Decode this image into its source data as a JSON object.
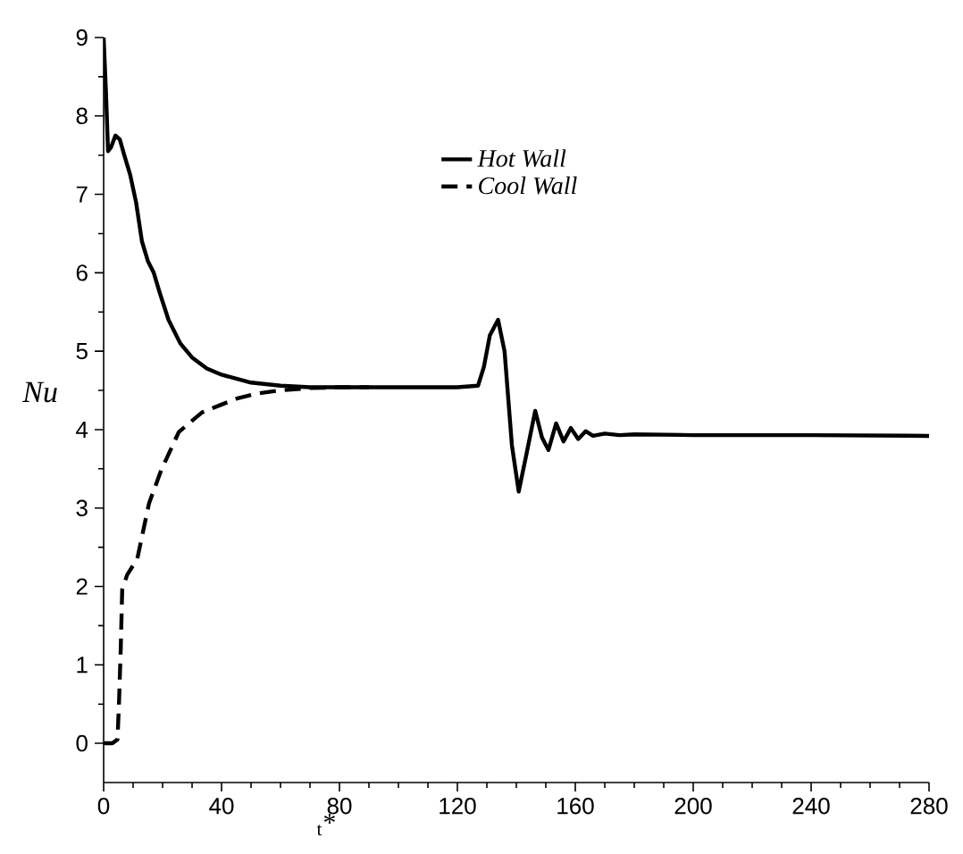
{
  "chart_data": {
    "type": "line",
    "xlabel": "$_{t}$*",
    "ylabel": "*Nu*",
    "xlim": [
      0,
      280
    ],
    "ylim": [
      -0.5,
      9
    ],
    "xticks": [
      0,
      40,
      80,
      120,
      160,
      200,
      240,
      280
    ],
    "yticks": [
      0,
      1,
      2,
      3,
      4,
      5,
      6,
      7,
      8,
      9
    ],
    "legend": "top",
    "series": [
      {
        "name": "*Hot Wall*",
        "color": "#000000",
        "line_style": "solid",
        "x": [
          0,
          0.8,
          1.5,
          2.5,
          4,
          5.5,
          7,
          9,
          11,
          13,
          15,
          17,
          19,
          22,
          26,
          30,
          35,
          40,
          50,
          60,
          70,
          80,
          100,
          120,
          127,
          129,
          131,
          133.8,
          136,
          138.5,
          140.8,
          143.5,
          146.4,
          148.7,
          150.9,
          153.5,
          156,
          158.5,
          161,
          163.5,
          166,
          170,
          175,
          180,
          200,
          240,
          280
        ],
        "values": [
          9,
          8.3,
          7.55,
          7.6,
          7.75,
          7.7,
          7.5,
          7.25,
          6.9,
          6.4,
          6.15,
          6.0,
          5.75,
          5.4,
          5.1,
          4.92,
          4.78,
          4.7,
          4.6,
          4.56,
          4.54,
          4.54,
          4.54,
          4.54,
          4.56,
          4.8,
          5.2,
          5.4,
          5.0,
          3.8,
          3.21,
          3.7,
          4.24,
          3.9,
          3.74,
          4.08,
          3.85,
          4.02,
          3.88,
          3.98,
          3.92,
          3.95,
          3.93,
          3.94,
          3.93,
          3.93,
          3.92
        ]
      },
      {
        "name": "*Cool Wall*",
        "color": "#000000",
        "line_style": "dashed",
        "x": [
          0,
          3,
          4.7,
          5.2,
          5.8,
          6.3,
          8,
          11.4,
          15.4,
          19.5,
          25.5,
          33.4,
          40,
          45.5,
          52,
          59.8,
          70,
          80,
          90
        ],
        "values": [
          0,
          0,
          0.05,
          0.5,
          1.2,
          1.96,
          2.15,
          2.35,
          3.06,
          3.48,
          3.97,
          4.22,
          4.32,
          4.4,
          4.46,
          4.5,
          4.53,
          4.54,
          4.54
        ]
      }
    ]
  }
}
